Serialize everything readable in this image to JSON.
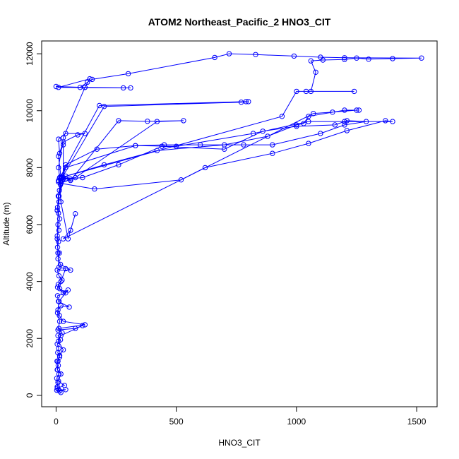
{
  "chart_data": {
    "type": "line",
    "title": "ATOM2 Northeast_Pacific_2 HNO3_CIT",
    "xlabel": "HNO3_CIT",
    "ylabel": "Altitude (m)",
    "xlim": [
      -60,
      1585
    ],
    "ylim": [
      -400,
      12450
    ],
    "xticks": [
      0,
      500,
      1000,
      1500
    ],
    "yticks": [
      0,
      2000,
      4000,
      6000,
      8000,
      10000,
      12000
    ],
    "grid": false,
    "legend": "none",
    "color": "#0000ff",
    "series": [
      {
        "values": [
          [
            10,
            200
          ],
          [
            5,
            300
          ],
          [
            8,
            450
          ],
          [
            3,
            600
          ],
          [
            12,
            750
          ],
          [
            6,
            900
          ],
          [
            9,
            1050
          ],
          [
            4,
            1200
          ],
          [
            15,
            1350
          ],
          [
            7,
            1500
          ],
          [
            11,
            1650
          ],
          [
            5,
            1800
          ],
          [
            18,
            1950
          ],
          [
            8,
            2100
          ],
          [
            25,
            2200
          ],
          [
            12,
            2350
          ],
          [
            120,
            2480
          ],
          [
            30,
            2600
          ],
          [
            14,
            2800
          ],
          [
            8,
            3000
          ],
          [
            20,
            3150
          ],
          [
            55,
            3100
          ],
          [
            10,
            3300
          ],
          [
            6,
            3500
          ],
          [
            40,
            3600
          ],
          [
            15,
            3750
          ],
          [
            9,
            3900
          ],
          [
            25,
            4050
          ],
          [
            12,
            4200
          ],
          [
            5,
            4400
          ],
          [
            60,
            4400
          ],
          [
            18,
            4600
          ],
          [
            8,
            4800
          ],
          [
            14,
            5000
          ],
          [
            6,
            5200
          ],
          [
            10,
            5400
          ],
          [
            5,
            5600
          ],
          [
            12,
            5800
          ],
          [
            8,
            6000
          ],
          [
            15,
            6200
          ],
          [
            10,
            6400
          ],
          [
            6,
            6600
          ],
          [
            12,
            6800
          ],
          [
            9,
            7000
          ],
          [
            14,
            7200
          ],
          [
            18,
            7400
          ],
          [
            10,
            7550
          ],
          [
            30,
            7650
          ],
          [
            60,
            7600
          ],
          [
            20,
            7450
          ],
          [
            160,
            7250
          ],
          [
            520,
            7570
          ],
          [
            620,
            8000
          ],
          [
            900,
            8500
          ],
          [
            1050,
            8850
          ],
          [
            1210,
            9300
          ],
          [
            1370,
            9650
          ],
          [
            1400,
            9620
          ],
          [
            1200,
            9620
          ],
          [
            1050,
            9620
          ],
          [
            820,
            9200
          ],
          [
            500,
            8750
          ],
          [
            330,
            8770
          ],
          [
            170,
            8650
          ],
          [
            40,
            8100
          ],
          [
            20,
            7650
          ],
          [
            10,
            7000
          ],
          [
            5,
            6500
          ]
        ]
      },
      {
        "values": [
          [
            5,
            6500
          ],
          [
            12,
            7000
          ],
          [
            20,
            7500
          ],
          [
            40,
            8000
          ],
          [
            330,
            8770
          ],
          [
            450,
            8800
          ],
          [
            600,
            8800
          ],
          [
            780,
            8800
          ],
          [
            900,
            8800
          ],
          [
            1100,
            9200
          ],
          [
            1200,
            9500
          ],
          [
            1290,
            9620
          ],
          [
            1210,
            9650
          ],
          [
            1160,
            9500
          ],
          [
            1000,
            9450
          ],
          [
            860,
            9280
          ],
          [
            700,
            8650
          ],
          [
            440,
            8750
          ],
          [
            260,
            8100
          ],
          [
            110,
            7650
          ],
          [
            40,
            7600
          ],
          [
            20,
            7600
          ],
          [
            10,
            7000
          ]
        ]
      },
      {
        "values": [
          [
            10,
            7000
          ],
          [
            30,
            7650
          ],
          [
            60,
            7550
          ],
          [
            260,
            9650
          ],
          [
            380,
            9630
          ],
          [
            530,
            9650
          ],
          [
            420,
            9620
          ],
          [
            80,
            7650
          ],
          [
            30,
            7600
          ],
          [
            30,
            8800
          ],
          [
            15,
            8500
          ],
          [
            10,
            9000
          ],
          [
            40,
            9200
          ],
          [
            120,
            9200
          ],
          [
            90,
            9150
          ],
          [
            30,
            8900
          ],
          [
            10,
            8400
          ],
          [
            20,
            7700
          ],
          [
            180,
            10180
          ],
          [
            790,
            10320
          ],
          [
            800,
            10320
          ],
          [
            770,
            10300
          ],
          [
            200,
            10150
          ],
          [
            25,
            7650
          ],
          [
            10,
            7500
          ]
        ]
      },
      {
        "values": [
          [
            10,
            7500
          ],
          [
            20,
            7650
          ],
          [
            940,
            9800
          ],
          [
            1000,
            10680
          ],
          [
            1040,
            10680
          ],
          [
            1240,
            10680
          ],
          [
            1060,
            10680
          ],
          [
            1080,
            11350
          ],
          [
            1060,
            11750
          ],
          [
            1110,
            11780
          ],
          [
            1200,
            11800
          ],
          [
            1250,
            11850
          ],
          [
            1300,
            11810
          ],
          [
            1400,
            11830
          ],
          [
            1520,
            11850
          ],
          [
            1200,
            11860
          ],
          [
            1100,
            11880
          ],
          [
            990,
            11920
          ],
          [
            830,
            11970
          ],
          [
            720,
            12000
          ],
          [
            660,
            11870
          ],
          [
            300,
            11300
          ],
          [
            150,
            11100
          ],
          [
            130,
            11000
          ],
          [
            100,
            10820
          ],
          [
            0,
            10850
          ],
          [
            120,
            10820
          ],
          [
            310,
            10800
          ],
          [
            280,
            10800
          ],
          [
            10,
            10820
          ],
          [
            140,
            11120
          ],
          [
            120,
            10820
          ],
          [
            30,
            9050
          ],
          [
            10,
            8000
          ],
          [
            15,
            7650
          ]
        ]
      },
      {
        "values": [
          [
            15,
            7650
          ],
          [
            20,
            6800
          ],
          [
            50,
            5500
          ],
          [
            80,
            6380
          ],
          [
            60,
            5800
          ],
          [
            30,
            5500
          ],
          [
            1070,
            9900
          ],
          [
            1150,
            9950
          ],
          [
            1250,
            10020
          ],
          [
            1260,
            10020
          ],
          [
            1200,
            10020
          ],
          [
            1050,
            9800
          ],
          [
            1030,
            9550
          ],
          [
            1000,
            9500
          ],
          [
            880,
            9100
          ],
          [
            700,
            8800
          ],
          [
            420,
            8600
          ],
          [
            200,
            8100
          ],
          [
            40,
            7700
          ],
          [
            10,
            7000
          ],
          [
            5,
            5500
          ],
          [
            8,
            5000
          ]
        ]
      },
      {
        "values": [
          [
            8,
            5000
          ],
          [
            12,
            4500
          ],
          [
            40,
            4450
          ],
          [
            20,
            4000
          ],
          [
            6,
            3800
          ],
          [
            30,
            3600
          ],
          [
            50,
            3700
          ],
          [
            12,
            3300
          ],
          [
            6,
            2900
          ],
          [
            15,
            2600
          ],
          [
            8,
            2300
          ],
          [
            80,
            2350
          ],
          [
            110,
            2450
          ],
          [
            20,
            2100
          ],
          [
            10,
            1900
          ],
          [
            30,
            1600
          ],
          [
            15,
            1400
          ],
          [
            8,
            1200
          ],
          [
            5,
            900
          ],
          [
            20,
            750
          ],
          [
            10,
            500
          ],
          [
            35,
            350
          ],
          [
            5,
            250
          ],
          [
            15,
            150
          ],
          [
            40,
            200
          ],
          [
            3,
            180
          ],
          [
            20,
            100
          ]
        ]
      }
    ]
  }
}
